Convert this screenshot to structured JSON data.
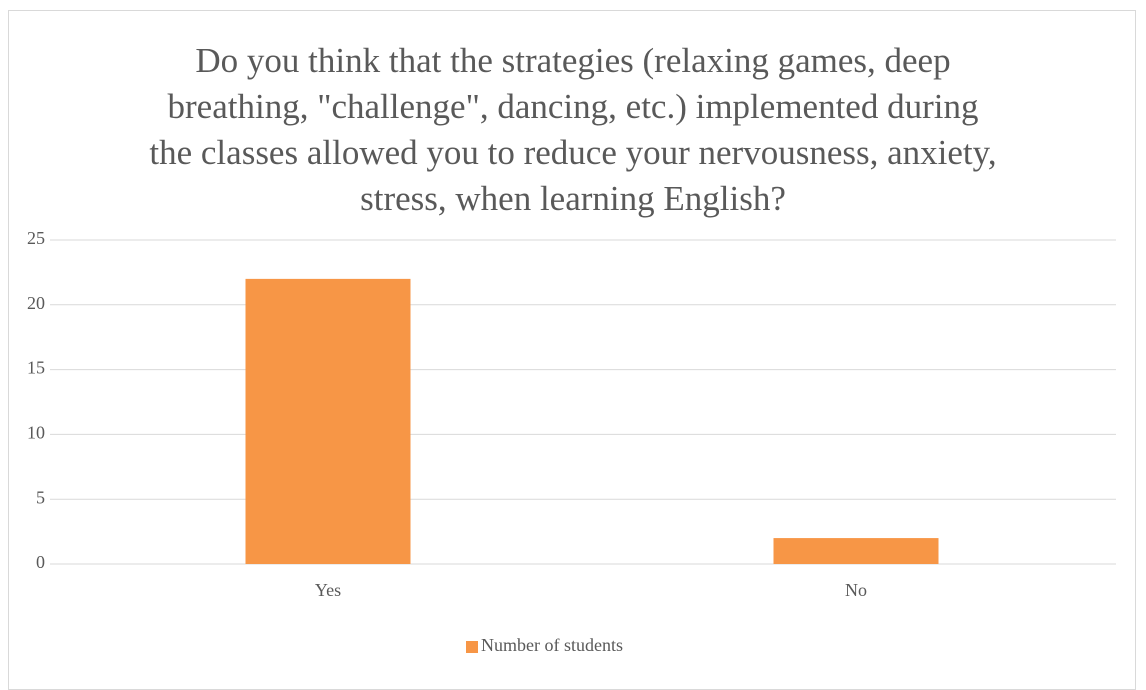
{
  "chart_data": {
    "type": "bar",
    "title": "Do you think that the strategies (relaxing games, deep breathing, \"challenge\", dancing, etc.) implemented during the classes allowed you to reduce your nervousness, anxiety, stress, when learning English?",
    "categories": [
      "Yes",
      "No"
    ],
    "series": [
      {
        "name": "Number of students",
        "color": "#f79646",
        "values": [
          22,
          2
        ]
      }
    ],
    "ylim": [
      0,
      25
    ],
    "yticks": [
      0,
      5,
      10,
      15,
      20,
      25
    ],
    "grid": true,
    "legend": "bottom"
  }
}
